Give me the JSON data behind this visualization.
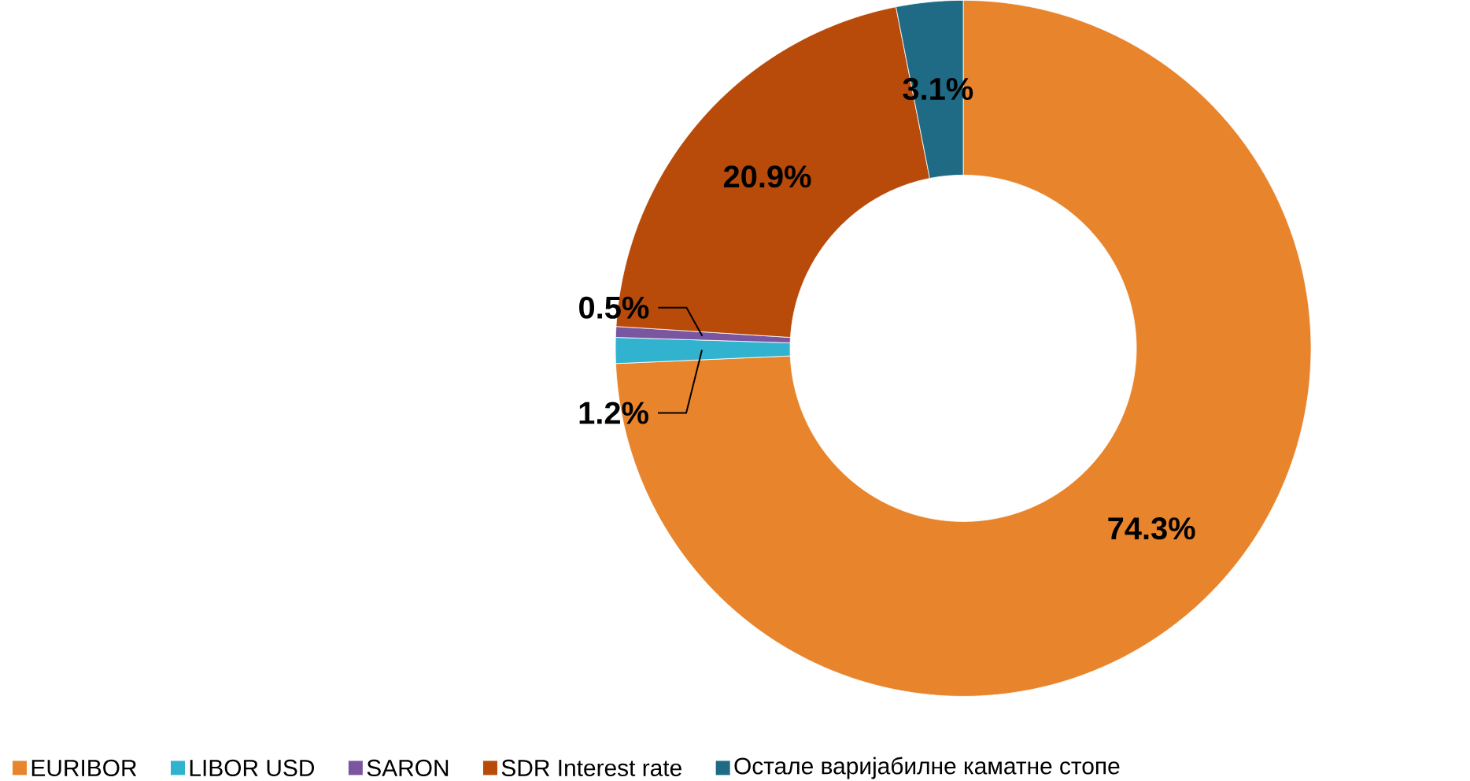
{
  "chart_data": {
    "type": "donut",
    "categories": [
      "EURIBOR",
      "LIBOR USD",
      "SARON",
      "SDR Interest rate",
      "Остале варијабилне каматне стопе"
    ],
    "values": [
      74.3,
      1.2,
      0.5,
      20.9,
      3.1
    ],
    "value_labels": [
      "74.3%",
      "1.2%",
      "0.5%",
      "20.9%",
      "3.1%"
    ],
    "colors": [
      "#e8842c",
      "#31b3cf",
      "#7b56a0",
      "#b84a0a",
      "#1f6b85"
    ],
    "legend": "bottom"
  }
}
